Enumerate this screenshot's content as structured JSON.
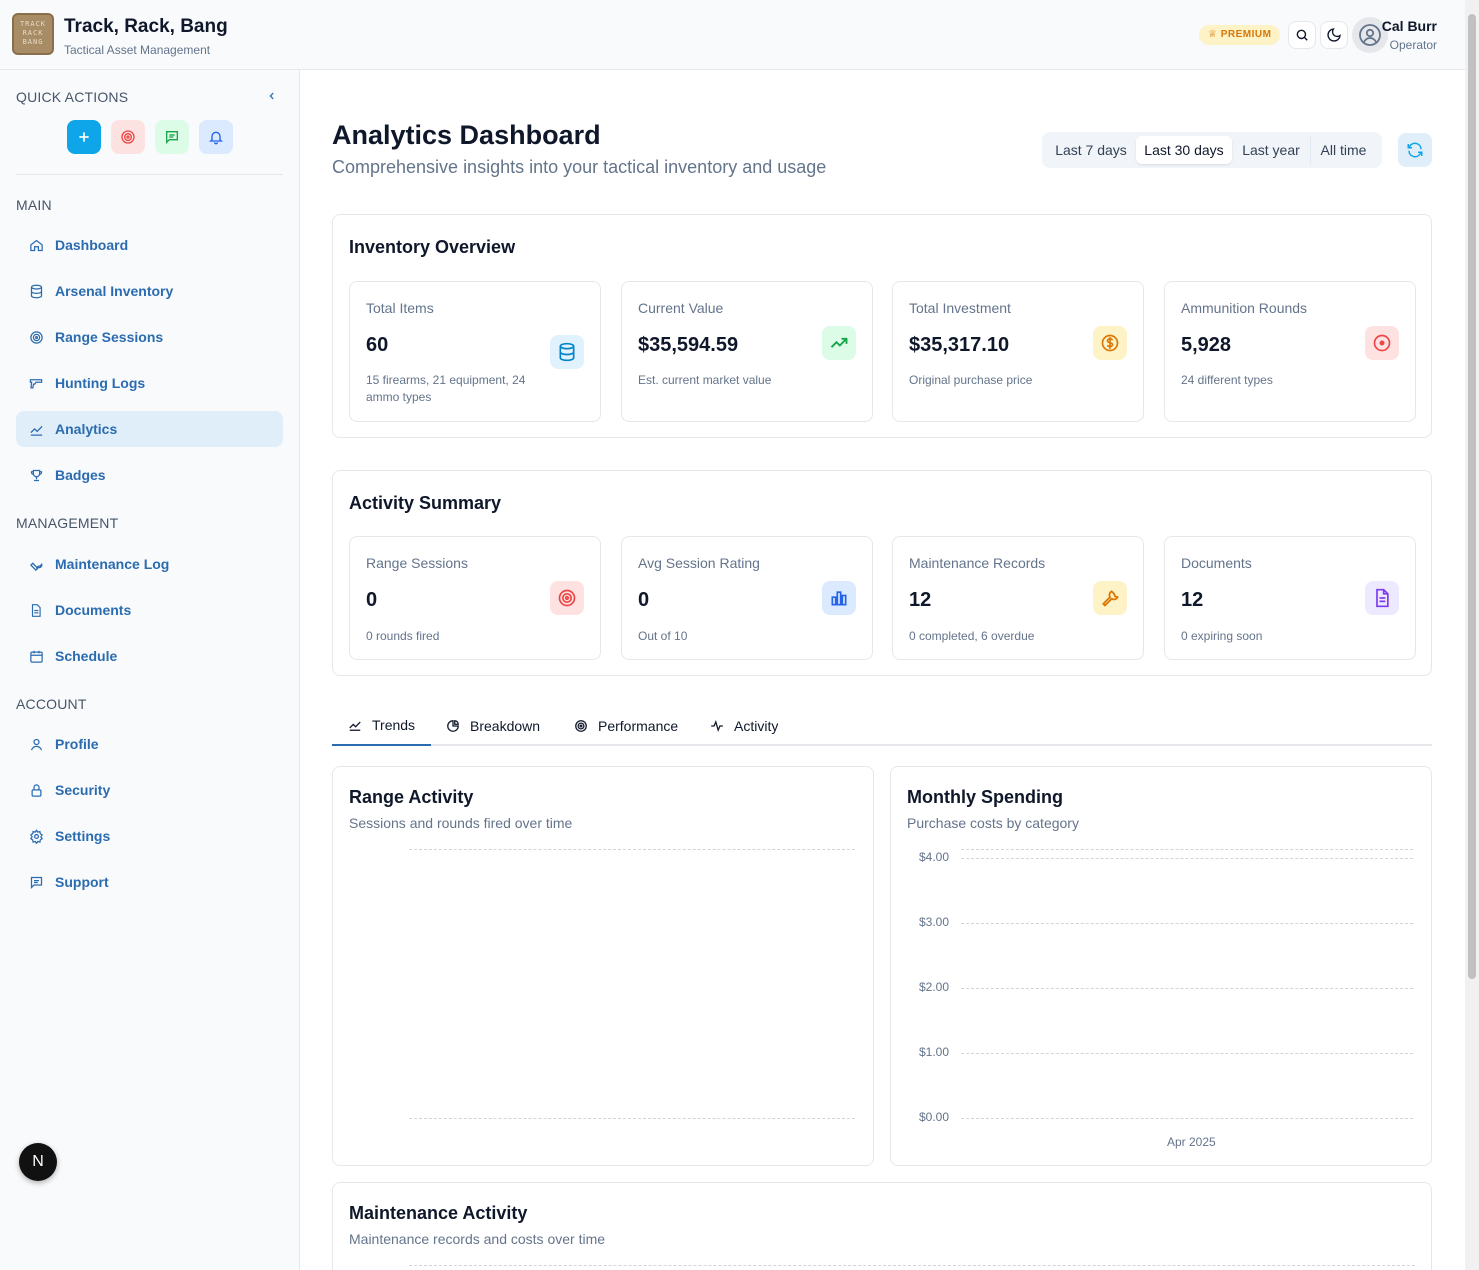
{
  "app": {
    "title": "Track, Rack, Bang",
    "subtitle": "Tactical Asset Management",
    "logo_text": "TRACK RACK BANG"
  },
  "header": {
    "premium_label": "♕ PREMIUM",
    "user_name": "Cal Burr",
    "user_role": "Operator"
  },
  "sidebar": {
    "quick_actions_title": "QUICK ACTIONS",
    "main_title": "MAIN",
    "management_title": "MANAGEMENT",
    "account_title": "ACCOUNT",
    "main_items": [
      {
        "label": "Dashboard"
      },
      {
        "label": "Arsenal Inventory"
      },
      {
        "label": "Range Sessions"
      },
      {
        "label": "Hunting Logs"
      },
      {
        "label": "Analytics"
      },
      {
        "label": "Badges"
      }
    ],
    "management_items": [
      {
        "label": "Maintenance Log"
      },
      {
        "label": "Documents"
      },
      {
        "label": "Schedule"
      }
    ],
    "account_items": [
      {
        "label": "Profile"
      },
      {
        "label": "Security"
      },
      {
        "label": "Settings"
      },
      {
        "label": "Support"
      }
    ],
    "bottom_badge": "N"
  },
  "page": {
    "title": "Analytics Dashboard",
    "subtitle": "Comprehensive insights into your tactical inventory and usage",
    "ranges": [
      "Last 7 days",
      "Last 30 days",
      "Last year",
      "All time"
    ],
    "selected_range": "Last 30 days"
  },
  "inventory": {
    "title": "Inventory Overview",
    "stats": [
      {
        "label": "Total Items",
        "value": "60",
        "note": "15 firearms, 21 equipment, 24 ammo types"
      },
      {
        "label": "Current Value",
        "value": "$35,594.59",
        "note": "Est. current market value"
      },
      {
        "label": "Total Investment",
        "value": "$35,317.10",
        "note": "Original purchase price"
      },
      {
        "label": "Ammunition Rounds",
        "value": "5,928",
        "note": "24 different types"
      }
    ]
  },
  "activity": {
    "title": "Activity Summary",
    "stats": [
      {
        "label": "Range Sessions",
        "value": "0",
        "note": "0 rounds fired"
      },
      {
        "label": "Avg Session Rating",
        "value": "0",
        "note": "Out of 10"
      },
      {
        "label": "Maintenance Records",
        "value": "12",
        "note": "0 completed, 6 overdue"
      },
      {
        "label": "Documents",
        "value": "12",
        "note": "0 expiring soon"
      }
    ]
  },
  "tabs": [
    {
      "label": "Trends"
    },
    {
      "label": "Breakdown"
    },
    {
      "label": "Performance"
    },
    {
      "label": "Activity"
    }
  ],
  "colors": {
    "accent": "#2b6cb0",
    "premium": "#d97706"
  },
  "chart_data": [
    {
      "type": "line",
      "title": "Range Activity",
      "subtitle": "Sessions and rounds fired over time",
      "series": [],
      "x": [],
      "grid": true
    },
    {
      "type": "bar",
      "title": "Monthly Spending",
      "subtitle": "Purchase costs by category",
      "categories": [
        "Apr 2025"
      ],
      "series": [],
      "ylim": [
        0,
        4
      ],
      "yticks": [
        "$0.00",
        "$1.00",
        "$2.00",
        "$3.00",
        "$4.00"
      ],
      "grid": true
    },
    {
      "type": "line",
      "title": "Maintenance Activity",
      "subtitle": "Maintenance records and costs over time",
      "series": []
    }
  ]
}
